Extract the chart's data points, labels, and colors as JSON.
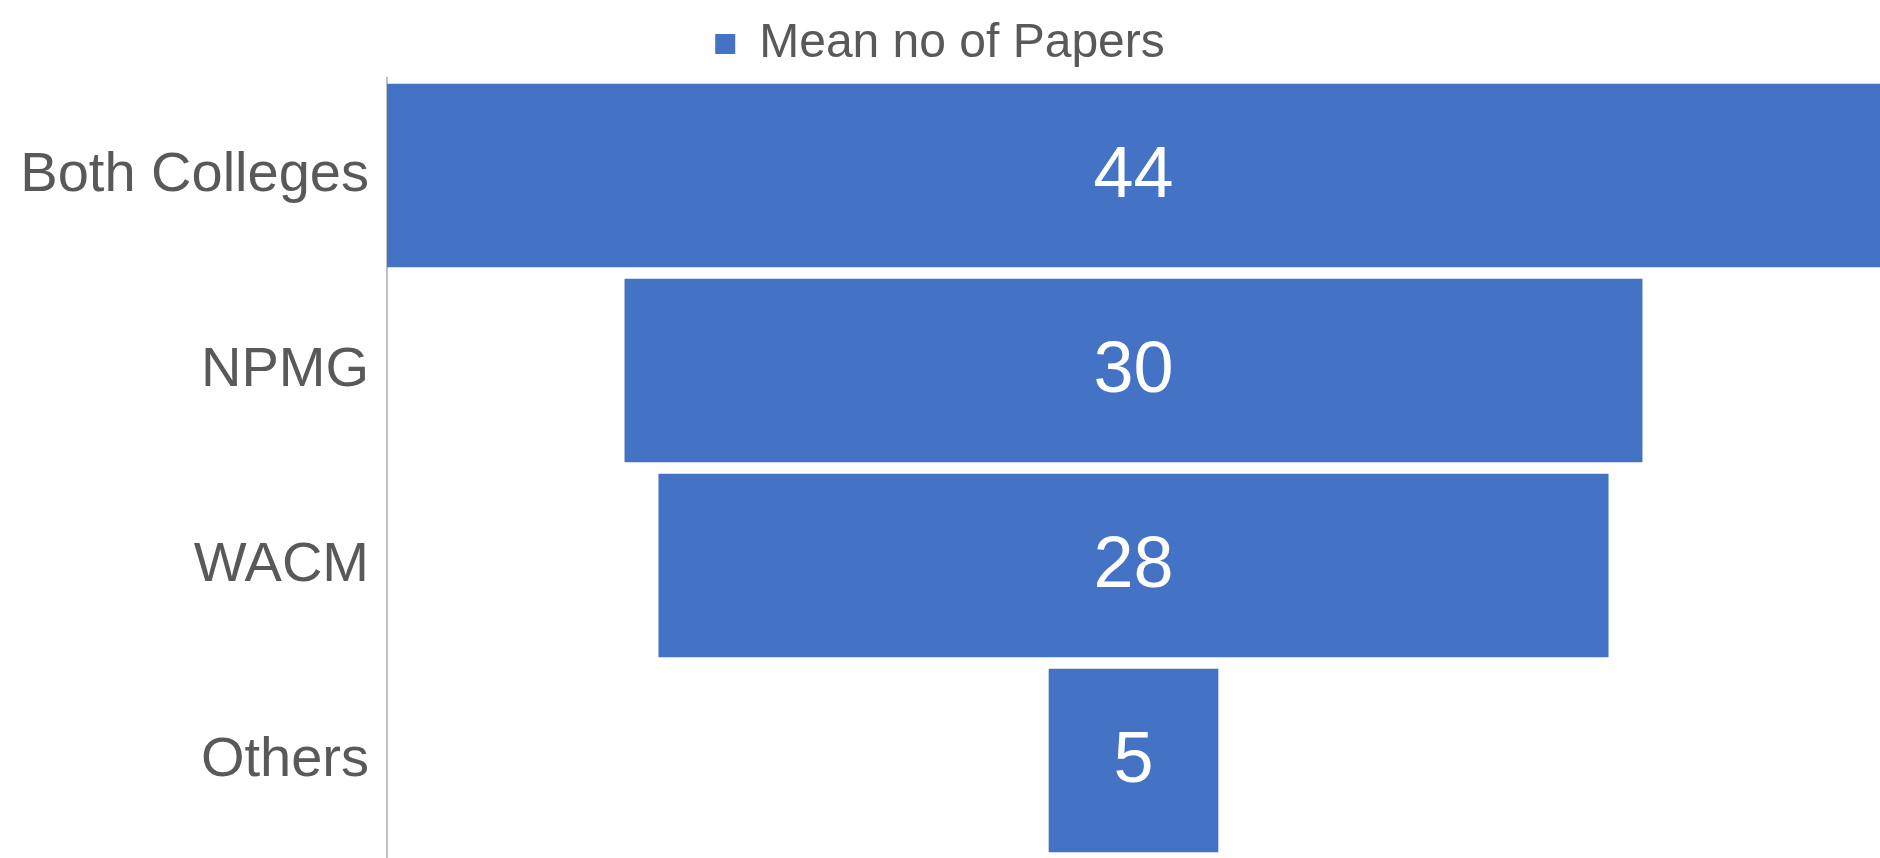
{
  "chart_data": {
    "type": "other",
    "categories": [
      "Both Colleges",
      "NPMG",
      "WACM",
      "Others"
    ],
    "series": [
      {
        "name": "Mean no of Papers",
        "color": "#4472c4",
        "values": [
          44,
          30,
          28,
          5
        ]
      }
    ],
    "data_labels": true,
    "legend": "top"
  }
}
